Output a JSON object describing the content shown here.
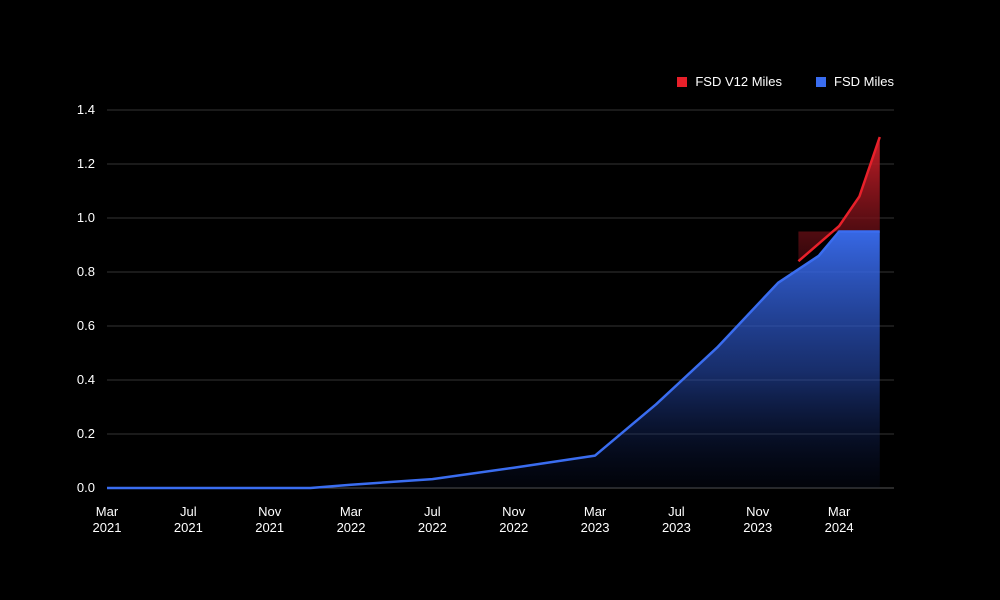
{
  "chart_data": {
    "type": "area",
    "title": "",
    "xlabel": "",
    "ylabel": "",
    "ylim": [
      0,
      1.4
    ],
    "y_ticks": [
      "0.0",
      "0.2",
      "0.4",
      "0.6",
      "0.8",
      "1.0",
      "1.2",
      "1.4"
    ],
    "x_ticks": [
      {
        "month": "Mar",
        "year": "2021"
      },
      {
        "month": "Jul",
        "year": "2021"
      },
      {
        "month": "Nov",
        "year": "2021"
      },
      {
        "month": "Mar",
        "year": "2022"
      },
      {
        "month": "Jul",
        "year": "2022"
      },
      {
        "month": "Nov",
        "year": "2022"
      },
      {
        "month": "Mar",
        "year": "2023"
      },
      {
        "month": "Jul",
        "year": "2023"
      },
      {
        "month": "Nov",
        "year": "2023"
      },
      {
        "month": "Mar",
        "year": "2024"
      }
    ],
    "grid": true,
    "legend_position": "top-right",
    "series": [
      {
        "name": "FSD Miles",
        "color": "#3a6df0",
        "points": [
          {
            "x": "2021-03",
            "y": 0.0
          },
          {
            "x": "2021-07",
            "y": 0.0
          },
          {
            "x": "2021-11",
            "y": 0.0
          },
          {
            "x": "2022-01",
            "y": 0.0
          },
          {
            "x": "2022-03",
            "y": 0.012
          },
          {
            "x": "2022-07",
            "y": 0.033
          },
          {
            "x": "2022-11",
            "y": 0.075
          },
          {
            "x": "2023-03",
            "y": 0.12
          },
          {
            "x": "2023-06",
            "y": 0.31
          },
          {
            "x": "2023-09",
            "y": 0.52
          },
          {
            "x": "2023-12",
            "y": 0.76
          },
          {
            "x": "2024-02",
            "y": 0.86
          },
          {
            "x": "2024-03",
            "y": 0.95
          },
          {
            "x": "2024-05",
            "y": 0.95
          }
        ]
      },
      {
        "name": "FSD V12 Miles",
        "color": "#e8202a",
        "points": [
          {
            "x": "2024-01",
            "y": 0.84
          },
          {
            "x": "2024-03",
            "y": 0.97
          },
          {
            "x": "2024-04",
            "y": 1.08
          },
          {
            "x": "2024-05",
            "y": 1.3
          }
        ]
      }
    ]
  }
}
